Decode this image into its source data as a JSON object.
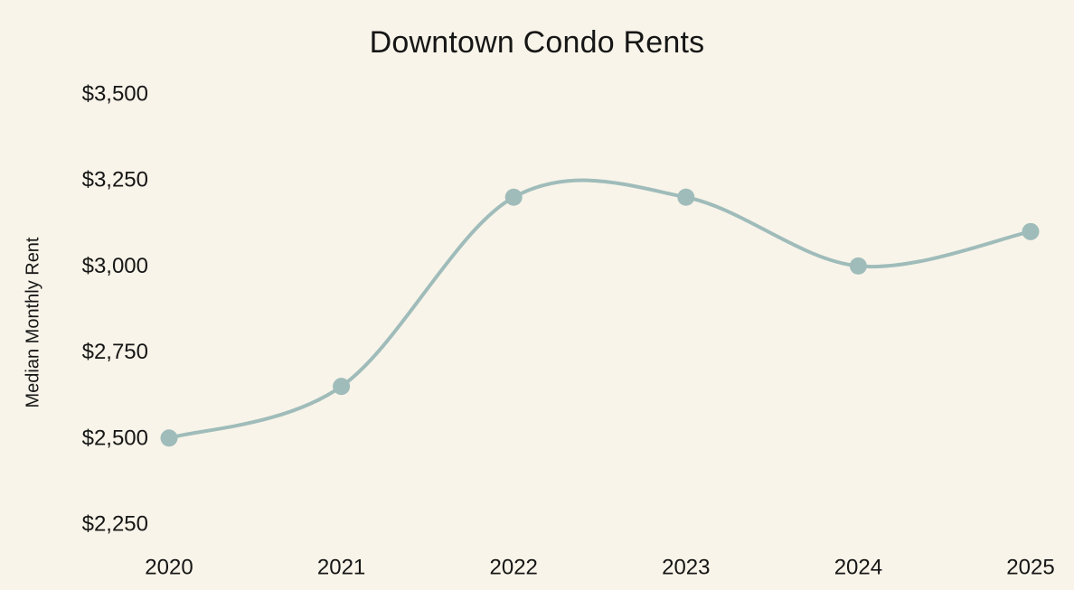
{
  "chart_data": {
    "type": "line",
    "title": "Downtown Condo Rents",
    "xlabel": "",
    "ylabel": "Median Monthly Rent",
    "categories": [
      "2020",
      "2021",
      "2022",
      "2023",
      "2024",
      "2025"
    ],
    "series": [
      {
        "name": "Median Monthly Rent",
        "values": [
          2500,
          2650,
          3200,
          3200,
          3000,
          3100
        ]
      }
    ],
    "y_ticks": [
      {
        "value": 3500,
        "label": "$3,500"
      },
      {
        "value": 3250,
        "label": "$3,250"
      },
      {
        "value": 3000,
        "label": "$3,000"
      },
      {
        "value": 2750,
        "label": "$2,750"
      },
      {
        "value": 2500,
        "label": "$2,500"
      },
      {
        "value": 2250,
        "label": "$2,250"
      }
    ],
    "ylim": [
      2250,
      3500
    ],
    "grid": false,
    "legend": "none",
    "smooth": true,
    "markers": true,
    "colors": {
      "line": "#9fbcba",
      "marker": "#9fbcba",
      "background": "#f8f4e9",
      "text": "#161616"
    }
  }
}
